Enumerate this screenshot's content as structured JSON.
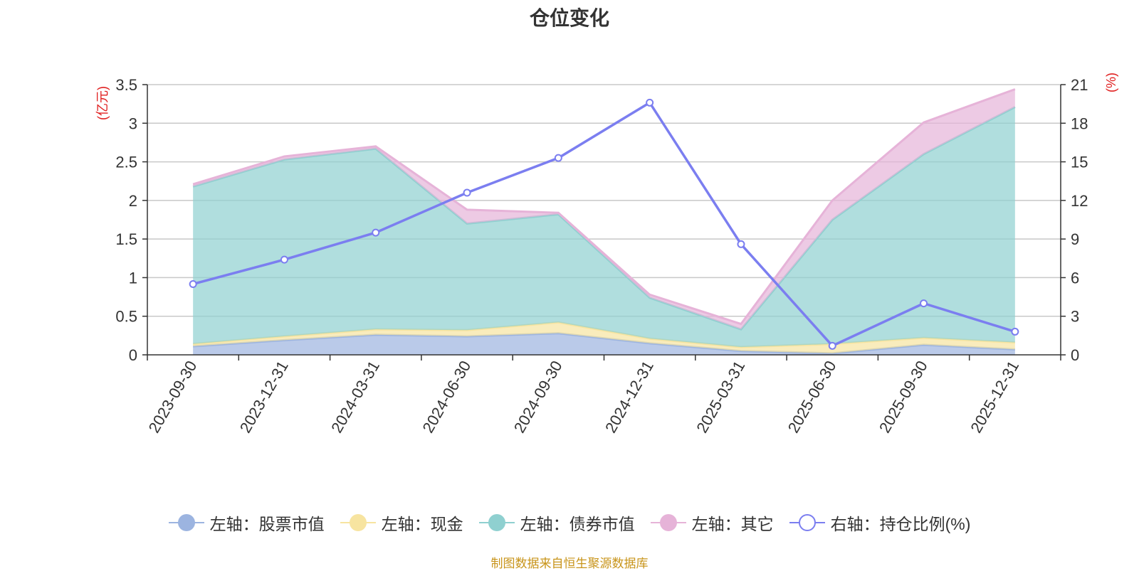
{
  "title": "仓位变化",
  "source": "制图数据来自恒生聚源数据库",
  "chart_data": {
    "type": "area",
    "categories": [
      "2023-09-30",
      "2023-12-31",
      "2024-03-31",
      "2024-06-30",
      "2024-09-30",
      "2024-12-31",
      "2025-03-31",
      "2025-06-30",
      "2025-09-30",
      "2025-12-31"
    ],
    "series": [
      {
        "name": "左轴：股票市值",
        "axis": "left",
        "stack": true,
        "color": "#9cb4e0",
        "values": [
          0.11,
          0.19,
          0.26,
          0.24,
          0.28,
          0.15,
          0.05,
          0.02,
          0.13,
          0.07
        ]
      },
      {
        "name": "左轴：现金",
        "axis": "left",
        "stack": true,
        "color": "#f7e4a0",
        "values": [
          0.03,
          0.05,
          0.07,
          0.08,
          0.14,
          0.06,
          0.05,
          0.12,
          0.09,
          0.09
        ]
      },
      {
        "name": "左轴：债券市值",
        "axis": "left",
        "stack": true,
        "color": "#8fd0d0",
        "values": [
          2.04,
          2.29,
          2.34,
          1.38,
          1.4,
          0.53,
          0.23,
          1.61,
          2.38,
          3.05
        ]
      },
      {
        "name": "左轴：其它",
        "axis": "left",
        "stack": true,
        "color": "#e6b3d8",
        "values": [
          0.03,
          0.04,
          0.03,
          0.18,
          0.02,
          0.04,
          0.07,
          0.25,
          0.41,
          0.23
        ]
      },
      {
        "name": "右轴：持仓比例(%)",
        "axis": "right",
        "type": "line",
        "color": "#7b7ef0",
        "values": [
          5.5,
          7.4,
          9.5,
          12.6,
          15.3,
          19.6,
          8.6,
          0.7,
          4.0,
          1.8
        ]
      }
    ],
    "y_left": {
      "label": "(亿元)",
      "ylim": [
        0,
        3.5
      ],
      "ticks": [
        "0",
        "0.5",
        "1",
        "1.5",
        "2",
        "2.5",
        "3",
        "3.5"
      ]
    },
    "y_right": {
      "label": "(%)",
      "ylim": [
        0,
        21
      ],
      "ticks": [
        "0",
        "3",
        "6",
        "9",
        "12",
        "15",
        "18",
        "21"
      ]
    },
    "legend_position": "bottom",
    "grid": true
  }
}
